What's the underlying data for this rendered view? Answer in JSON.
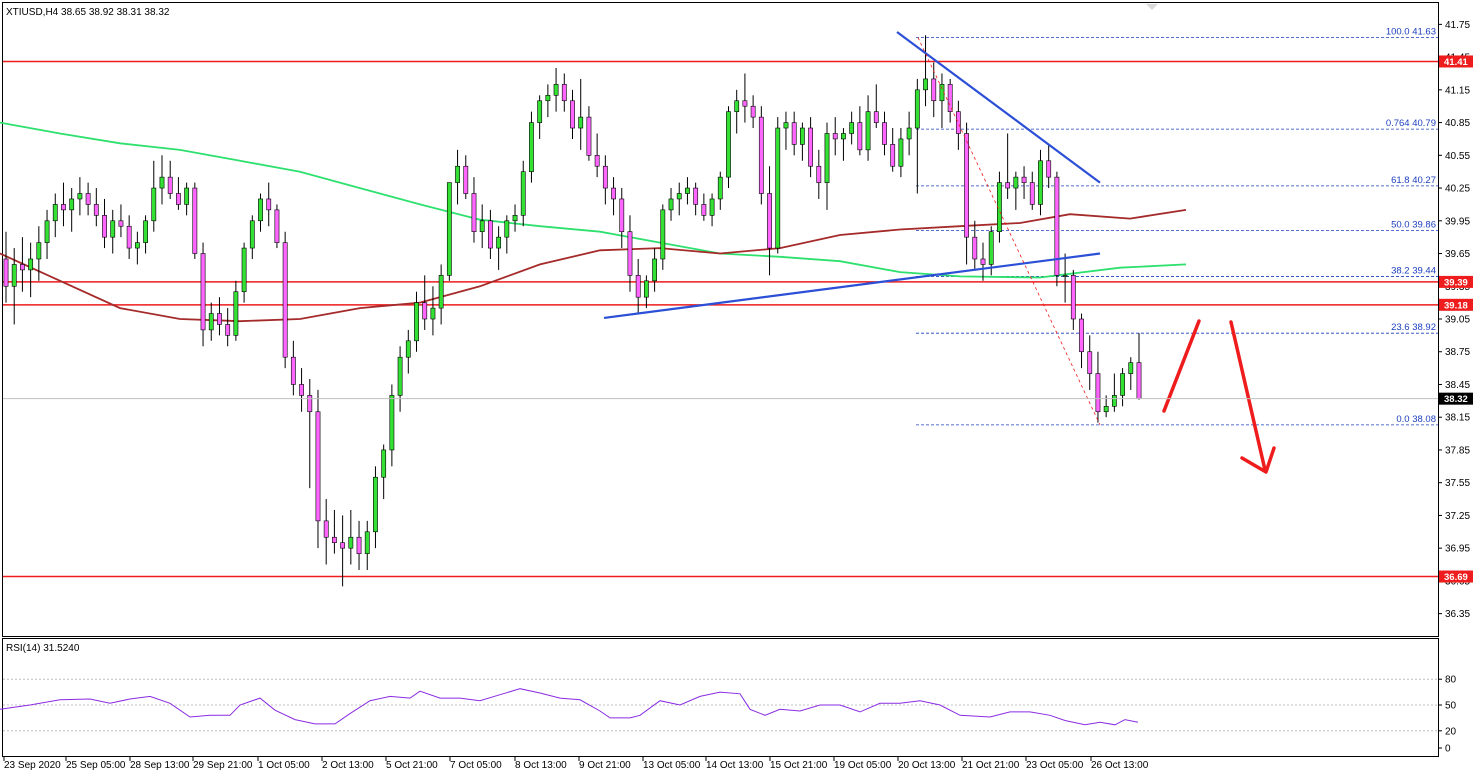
{
  "chart_data": {
    "type": "candlestick",
    "symbol_header": "XTIUSD,H4  38.65 38.92 38.31 38.32",
    "last_price": "38.32",
    "y_range": [
      36.2,
      41.9
    ],
    "y_ticks": [
      "41.75",
      "41.45",
      "41.15",
      "40.85",
      "40.55",
      "40.25",
      "39.95",
      "39.65",
      "39.35",
      "39.05",
      "38.75",
      "38.45",
      "38.15",
      "37.85",
      "37.55",
      "37.25",
      "36.95",
      "36.65",
      "36.35"
    ],
    "x_ticks": [
      "23 Sep 2020",
      "25 Sep 05:00",
      "28 Sep 13:00",
      "29 Sep 21:00",
      "1 Oct 05:00",
      "2 Oct 13:00",
      "5 Oct 21:00",
      "7 Oct 05:00",
      "8 Oct 13:00",
      "9 Oct 21:00",
      "13 Oct 05:00",
      "14 Oct 13:00",
      "15 Oct 21:00",
      "19 Oct 05:00",
      "20 Oct 13:00",
      "21 Oct 21:00",
      "23 Oct 05:00",
      "26 Oct 13:00"
    ],
    "horizontal_levels": [
      "41.41",
      "39.39",
      "39.18",
      "36.69"
    ],
    "fibonacci": [
      {
        "label": "100.0 41.63",
        "price": 41.63
      },
      {
        "label": "0.764 40.79",
        "price": 40.79
      },
      {
        "label": "61.8 40.27",
        "price": 40.27
      },
      {
        "label": "50.0 39.86",
        "price": 39.86
      },
      {
        "label": "38.2 39.44",
        "price": 39.44
      },
      {
        "label": "23.6 38.92",
        "price": 38.92
      },
      {
        "label": "0.0 38.08",
        "price": 38.08
      }
    ],
    "candles": [
      [
        39.6,
        39.85,
        39.2,
        39.35
      ],
      [
        39.35,
        39.7,
        39.0,
        39.55
      ],
      [
        39.55,
        39.8,
        39.3,
        39.5
      ],
      [
        39.5,
        39.75,
        39.25,
        39.6
      ],
      [
        39.6,
        39.9,
        39.4,
        39.75
      ],
      [
        39.75,
        40.05,
        39.6,
        39.95
      ],
      [
        39.95,
        40.2,
        39.8,
        40.1
      ],
      [
        40.1,
        40.3,
        39.9,
        40.05
      ],
      [
        40.05,
        40.25,
        39.85,
        40.15
      ],
      [
        40.15,
        40.35,
        40.0,
        40.2
      ],
      [
        40.2,
        40.3,
        40.0,
        40.1
      ],
      [
        40.1,
        40.25,
        39.9,
        40.0
      ],
      [
        40.0,
        40.15,
        39.7,
        39.8
      ],
      [
        39.8,
        40.05,
        39.65,
        39.95
      ],
      [
        39.95,
        40.1,
        39.8,
        39.9
      ],
      [
        39.9,
        40.0,
        39.6,
        39.7
      ],
      [
        39.7,
        39.85,
        39.55,
        39.75
      ],
      [
        39.75,
        40.0,
        39.65,
        39.95
      ],
      [
        39.95,
        40.5,
        39.85,
        40.25
      ],
      [
        40.25,
        40.55,
        40.1,
        40.35
      ],
      [
        40.35,
        40.5,
        40.15,
        40.2
      ],
      [
        40.2,
        40.35,
        40.05,
        40.1
      ],
      [
        40.1,
        40.3,
        40.0,
        40.25
      ],
      [
        40.25,
        40.3,
        39.6,
        39.65
      ],
      [
        39.65,
        39.75,
        38.8,
        38.95
      ],
      [
        38.95,
        39.2,
        38.85,
        39.1
      ],
      [
        39.1,
        39.25,
        38.9,
        39.0
      ],
      [
        39.0,
        39.15,
        38.8,
        38.9
      ],
      [
        38.9,
        39.4,
        38.85,
        39.3
      ],
      [
        39.3,
        39.75,
        39.2,
        39.7
      ],
      [
        39.7,
        40.0,
        39.6,
        39.95
      ],
      [
        39.95,
        40.2,
        39.85,
        40.15
      ],
      [
        40.15,
        40.3,
        39.9,
        40.05
      ],
      [
        40.05,
        40.1,
        39.7,
        39.75
      ],
      [
        39.75,
        39.85,
        38.6,
        38.7
      ],
      [
        38.7,
        38.85,
        38.35,
        38.45
      ],
      [
        38.45,
        38.6,
        38.2,
        38.35
      ],
      [
        38.35,
        38.5,
        37.5,
        38.2
      ],
      [
        38.2,
        38.4,
        36.95,
        37.2
      ],
      [
        37.2,
        37.4,
        36.8,
        37.05
      ],
      [
        37.05,
        37.3,
        36.9,
        37.0
      ],
      [
        37.0,
        37.25,
        36.6,
        36.95
      ],
      [
        36.95,
        37.3,
        36.8,
        37.05
      ],
      [
        37.05,
        37.2,
        36.75,
        36.9
      ],
      [
        36.9,
        37.2,
        36.75,
        37.1
      ],
      [
        37.1,
        37.7,
        36.95,
        37.6
      ],
      [
        37.6,
        37.9,
        37.4,
        37.85
      ],
      [
        37.85,
        38.45,
        37.7,
        38.35
      ],
      [
        38.35,
        38.8,
        38.2,
        38.7
      ],
      [
        38.7,
        38.95,
        38.55,
        38.85
      ],
      [
        38.85,
        39.3,
        38.75,
        39.2
      ],
      [
        39.2,
        39.45,
        38.95,
        39.05
      ],
      [
        39.05,
        39.35,
        38.9,
        39.15
      ],
      [
        39.15,
        39.55,
        39.0,
        39.45
      ],
      [
        39.45,
        40.3,
        39.4,
        40.3
      ],
      [
        40.3,
        40.6,
        40.1,
        40.45
      ],
      [
        40.45,
        40.55,
        40.15,
        40.2
      ],
      [
        40.2,
        40.35,
        39.75,
        39.85
      ],
      [
        39.85,
        40.1,
        39.7,
        39.95
      ],
      [
        39.95,
        40.05,
        39.6,
        39.7
      ],
      [
        39.7,
        39.9,
        39.5,
        39.8
      ],
      [
        39.8,
        40.0,
        39.65,
        39.95
      ],
      [
        39.95,
        40.1,
        39.85,
        40.0
      ],
      [
        40.0,
        40.5,
        39.9,
        40.4
      ],
      [
        40.4,
        40.95,
        40.3,
        40.85
      ],
      [
        40.85,
        41.1,
        40.7,
        41.05
      ],
      [
        41.05,
        41.2,
        40.9,
        41.1
      ],
      [
        41.1,
        41.35,
        40.95,
        41.2
      ],
      [
        41.2,
        41.3,
        40.95,
        41.05
      ],
      [
        41.05,
        41.15,
        40.7,
        40.8
      ],
      [
        40.8,
        41.25,
        40.6,
        40.9
      ],
      [
        40.9,
        41.0,
        40.5,
        40.55
      ],
      [
        40.55,
        40.75,
        40.35,
        40.45
      ],
      [
        40.45,
        40.55,
        40.1,
        40.25
      ],
      [
        40.25,
        40.35,
        40.0,
        40.15
      ],
      [
        40.15,
        40.25,
        39.7,
        39.85
      ],
      [
        39.85,
        40.0,
        39.3,
        39.45
      ],
      [
        39.45,
        39.6,
        39.1,
        39.25
      ],
      [
        39.25,
        39.45,
        39.15,
        39.4
      ],
      [
        39.4,
        39.7,
        39.3,
        39.6
      ],
      [
        39.6,
        40.1,
        39.5,
        40.05
      ],
      [
        40.05,
        40.25,
        39.95,
        40.15
      ],
      [
        40.15,
        40.3,
        40.0,
        40.2
      ],
      [
        40.2,
        40.35,
        40.1,
        40.25
      ],
      [
        40.25,
        40.3,
        40.0,
        40.1
      ],
      [
        40.1,
        40.2,
        39.95,
        40.0
      ],
      [
        40.0,
        40.2,
        39.9,
        40.15
      ],
      [
        40.15,
        40.4,
        40.05,
        40.35
      ],
      [
        40.35,
        41.0,
        40.25,
        40.95
      ],
      [
        40.95,
        41.15,
        40.75,
        41.05
      ],
      [
        41.05,
        41.3,
        40.85,
        41.0
      ],
      [
        41.0,
        41.1,
        40.8,
        40.9
      ],
      [
        40.9,
        41.0,
        40.1,
        40.2
      ],
      [
        40.2,
        40.45,
        39.45,
        39.7
      ],
      [
        39.7,
        40.9,
        39.65,
        40.8
      ],
      [
        40.8,
        40.95,
        40.6,
        40.85
      ],
      [
        40.85,
        40.95,
        40.55,
        40.65
      ],
      [
        40.65,
        40.85,
        40.5,
        40.8
      ],
      [
        40.8,
        40.9,
        40.35,
        40.45
      ],
      [
        40.45,
        40.6,
        40.15,
        40.3
      ],
      [
        40.3,
        40.85,
        40.05,
        40.75
      ],
      [
        40.75,
        40.9,
        40.55,
        40.7
      ],
      [
        40.7,
        40.8,
        40.5,
        40.75
      ],
      [
        40.75,
        40.95,
        40.65,
        40.85
      ],
      [
        40.85,
        41.0,
        40.55,
        40.6
      ],
      [
        40.6,
        41.1,
        40.5,
        40.95
      ],
      [
        40.95,
        41.2,
        40.8,
        40.85
      ],
      [
        40.85,
        40.95,
        40.55,
        40.65
      ],
      [
        40.65,
        40.8,
        40.4,
        40.45
      ],
      [
        40.45,
        40.8,
        40.35,
        40.7
      ],
      [
        40.7,
        40.95,
        40.55,
        40.8
      ],
      [
        40.8,
        41.25,
        40.2,
        41.15
      ],
      [
        41.15,
        41.65,
        41.0,
        41.25
      ],
      [
        41.25,
        41.4,
        40.9,
        41.05
      ],
      [
        41.05,
        41.3,
        40.8,
        41.2
      ],
      [
        41.2,
        41.25,
        40.85,
        40.95
      ],
      [
        40.95,
        41.05,
        40.6,
        40.75
      ],
      [
        40.75,
        40.85,
        39.55,
        39.8
      ],
      [
        39.8,
        39.95,
        39.5,
        39.6
      ],
      [
        39.6,
        39.75,
        39.4,
        39.55
      ],
      [
        39.55,
        39.9,
        39.45,
        39.85
      ],
      [
        39.85,
        40.4,
        39.75,
        40.3
      ],
      [
        40.3,
        40.75,
        40.15,
        40.25
      ],
      [
        40.25,
        40.4,
        40.05,
        40.35
      ],
      [
        40.35,
        40.45,
        40.15,
        40.3
      ],
      [
        40.3,
        40.4,
        40.05,
        40.1
      ],
      [
        40.1,
        40.6,
        40.0,
        40.5
      ],
      [
        40.5,
        40.65,
        40.25,
        40.35
      ],
      [
        40.35,
        40.4,
        39.35,
        39.45
      ],
      [
        39.45,
        39.65,
        39.2,
        39.45
      ],
      [
        39.45,
        39.5,
        38.95,
        39.05
      ],
      [
        39.05,
        39.1,
        38.6,
        38.75
      ],
      [
        38.75,
        38.9,
        38.4,
        38.55
      ],
      [
        38.55,
        38.75,
        38.1,
        38.2
      ],
      [
        38.2,
        38.35,
        38.15,
        38.25
      ],
      [
        38.25,
        38.55,
        38.2,
        38.35
      ],
      [
        38.35,
        38.6,
        38.25,
        38.55
      ],
      [
        38.55,
        38.7,
        38.4,
        38.65
      ],
      [
        38.65,
        38.92,
        38.31,
        38.32
      ]
    ],
    "sma_green": [
      [
        0,
        40.85
      ],
      [
        60,
        40.75
      ],
      [
        120,
        40.66
      ],
      [
        180,
        40.6
      ],
      [
        240,
        40.5
      ],
      [
        300,
        40.4
      ],
      [
        360,
        40.25
      ],
      [
        420,
        40.1
      ],
      [
        480,
        39.96
      ],
      [
        540,
        39.9
      ],
      [
        600,
        39.85
      ],
      [
        660,
        39.75
      ],
      [
        720,
        39.65
      ],
      [
        780,
        39.62
      ],
      [
        840,
        39.58
      ],
      [
        900,
        39.48
      ],
      [
        960,
        39.44
      ],
      [
        1040,
        39.43
      ],
      [
        1120,
        39.52
      ],
      [
        1186,
        39.55
      ]
    ],
    "sma_red": [
      [
        0,
        39.65
      ],
      [
        60,
        39.4
      ],
      [
        120,
        39.15
      ],
      [
        180,
        39.05
      ],
      [
        240,
        39.03
      ],
      [
        300,
        39.05
      ],
      [
        360,
        39.15
      ],
      [
        420,
        39.2
      ],
      [
        480,
        39.35
      ],
      [
        540,
        39.55
      ],
      [
        600,
        39.68
      ],
      [
        660,
        39.7
      ],
      [
        720,
        39.65
      ],
      [
        780,
        39.7
      ],
      [
        840,
        39.82
      ],
      [
        900,
        39.87
      ],
      [
        960,
        39.9
      ],
      [
        1020,
        39.93
      ],
      [
        1070,
        40.01
      ],
      [
        1130,
        39.97
      ],
      [
        1186,
        40.05
      ]
    ],
    "trendlines": [
      {
        "from": [
          897,
          41.68
        ],
        "to": [
          1100,
          40.3
        ],
        "color": "#2b4fd6"
      },
      {
        "from": [
          604,
          39.06
        ],
        "to": [
          1100,
          39.65
        ],
        "color": "#2b4fd6"
      }
    ],
    "rsi": {
      "label": "RSI(14) 31.5240",
      "levels": [
        "80",
        "50",
        "20",
        "0"
      ],
      "ylim": [
        0,
        100
      ],
      "values": [
        [
          0,
          45
        ],
        [
          30,
          50
        ],
        [
          60,
          56
        ],
        [
          90,
          57
        ],
        [
          110,
          52
        ],
        [
          130,
          57
        ],
        [
          150,
          60
        ],
        [
          170,
          52
        ],
        [
          190,
          36
        ],
        [
          210,
          38
        ],
        [
          230,
          38
        ],
        [
          240,
          50
        ],
        [
          260,
          58
        ],
        [
          275,
          44
        ],
        [
          295,
          33
        ],
        [
          315,
          28
        ],
        [
          335,
          28
        ],
        [
          350,
          40
        ],
        [
          370,
          55
        ],
        [
          390,
          60
        ],
        [
          410,
          58
        ],
        [
          420,
          66
        ],
        [
          440,
          58
        ],
        [
          460,
          58
        ],
        [
          480,
          55
        ],
        [
          500,
          62
        ],
        [
          520,
          69
        ],
        [
          540,
          64
        ],
        [
          560,
          58
        ],
        [
          580,
          56
        ],
        [
          600,
          43
        ],
        [
          610,
          35
        ],
        [
          630,
          35
        ],
        [
          640,
          38
        ],
        [
          660,
          55
        ],
        [
          680,
          50
        ],
        [
          700,
          60
        ],
        [
          720,
          65
        ],
        [
          740,
          63
        ],
        [
          750,
          45
        ],
        [
          765,
          38
        ],
        [
          780,
          45
        ],
        [
          800,
          43
        ],
        [
          820,
          50
        ],
        [
          840,
          50
        ],
        [
          860,
          42
        ],
        [
          880,
          52
        ],
        [
          900,
          52
        ],
        [
          920,
          55
        ],
        [
          940,
          50
        ],
        [
          960,
          38
        ],
        [
          990,
          36
        ],
        [
          1010,
          42
        ],
        [
          1030,
          42
        ],
        [
          1050,
          38
        ],
        [
          1065,
          32
        ],
        [
          1085,
          27
        ],
        [
          1100,
          30
        ],
        [
          1115,
          27
        ],
        [
          1125,
          33
        ],
        [
          1138,
          30
        ]
      ]
    }
  }
}
